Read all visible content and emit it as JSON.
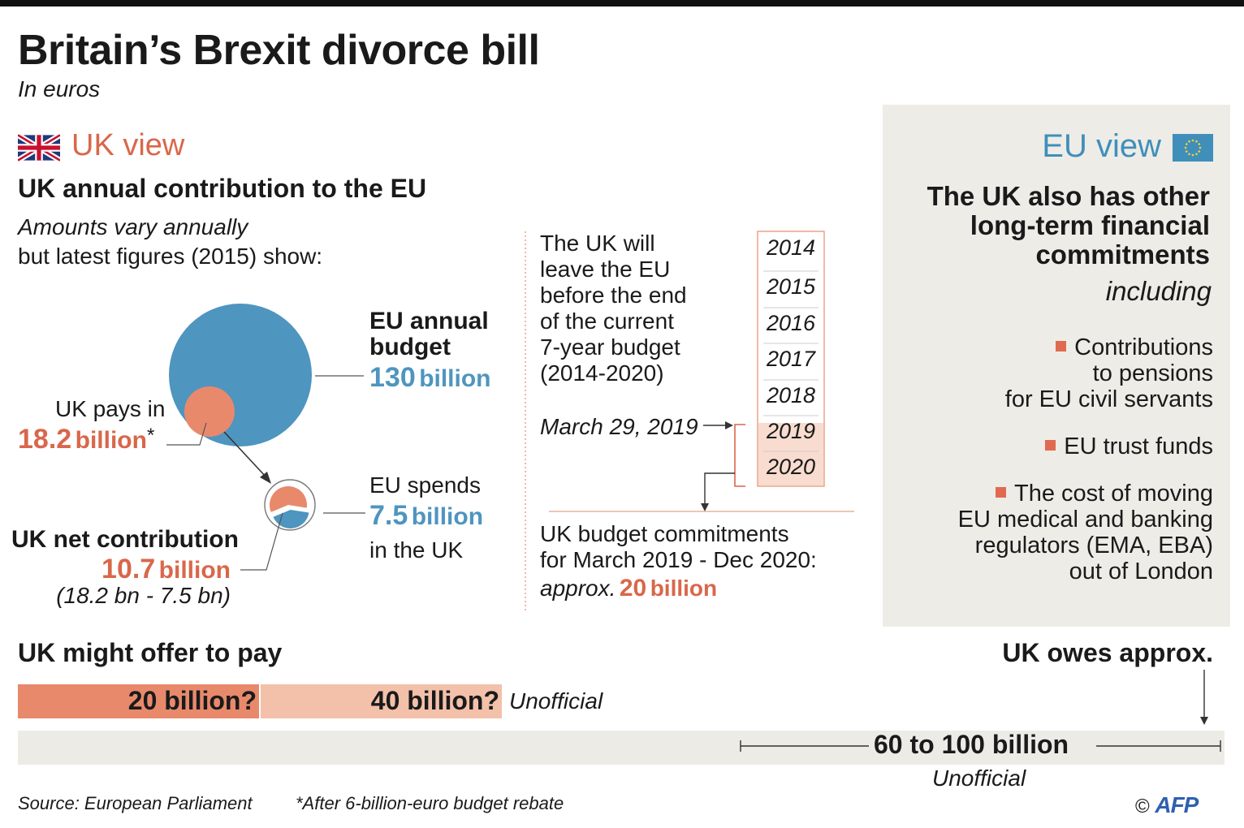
{
  "title": "Britain’s Brexit divorce bill",
  "subtitle": "In euros",
  "uk_view": {
    "heading": "UK view",
    "section_title": "UK annual contribution to the EU",
    "intro_line1": "Amounts vary annually",
    "intro_line2": "but latest figures (2015) show:",
    "eu_budget_label_line1": "EU annual",
    "eu_budget_label_line2": "budget",
    "eu_budget_value": "130",
    "eu_budget_unit": "billion",
    "uk_pays_label": "UK pays in",
    "uk_pays_value": "18.2",
    "uk_pays_unit": "billion",
    "uk_pays_asterisk": "*",
    "eu_spends_label": "EU spends",
    "eu_spends_value": "7.5",
    "eu_spends_unit": "billion",
    "eu_spends_suffix": "in the UK",
    "net_label": "UK net contribution",
    "net_value": "10.7",
    "net_unit": "billion",
    "net_formula": "(18.2 bn - 7.5 bn)"
  },
  "timeline": {
    "text_line1": "The UK will",
    "text_line2": "leave the EU",
    "text_line3": "before the end",
    "text_line4": "of the current",
    "text_line5": "7-year budget",
    "text_line6": "(2014-2020)",
    "leave_date": "March 29, 2019",
    "years": [
      "2014",
      "2015",
      "2016",
      "2017",
      "2018",
      "2019",
      "2020"
    ],
    "commit_line1": "UK budget commitments",
    "commit_line2": "for March 2019 - Dec 2020:",
    "commit_prefix": "approx.",
    "commit_value": "20",
    "commit_unit": "billion"
  },
  "eu_view": {
    "heading": "EU view",
    "statement_line1": "The UK also has other",
    "statement_line2": "long-term financial",
    "statement_line3": "commitments",
    "including": "including",
    "item1_line1": "Contributions",
    "item1_line2": "to pensions",
    "item1_line3": "for EU civil servants",
    "item2_line1": "EU trust funds",
    "item3_line1": "The cost of moving",
    "item3_line2": "EU medical and banking",
    "item3_line3": "regulators (EMA, EBA)",
    "item3_line4": "out of London"
  },
  "offer": {
    "label": "UK might offer to pay",
    "bar1_label": "20 billion?",
    "bar2_label": "40 billion?",
    "note": "Unofficial"
  },
  "owes": {
    "label": "UK owes approx.",
    "range": "60 to 100 billion",
    "note": "Unofficial"
  },
  "footer": {
    "source": "Source: European Parliament",
    "footnote": "*After 6-billion-euro budget rebate",
    "credit": "AFP",
    "copyright": "©"
  },
  "colors": {
    "uk_orange": "#d9674a",
    "eu_blue": "#4e95bf",
    "panel_bg": "#eeece7"
  },
  "chart_data": [
    {
      "type": "bubble",
      "title": "UK annual contribution to the EU (2015)",
      "unit": "billion euros",
      "items": [
        {
          "name": "EU annual budget",
          "value": 130
        },
        {
          "name": "UK pays in",
          "value": 18.2
        },
        {
          "name": "EU spends in the UK",
          "value": 7.5
        },
        {
          "name": "UK net contribution",
          "value": 10.7
        }
      ]
    },
    {
      "type": "bar",
      "title": "UK might offer to pay",
      "categories": [
        "20 billion?",
        "40 billion?"
      ],
      "values": [
        20,
        40
      ],
      "unit": "billion euros"
    },
    {
      "type": "range",
      "title": "UK owes approx.",
      "min": 60,
      "max": 100,
      "axis_max": 100,
      "unit": "billion euros"
    }
  ]
}
